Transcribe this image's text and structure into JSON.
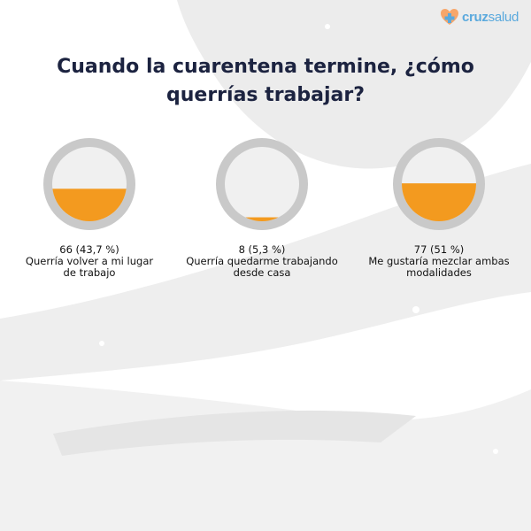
{
  "brand": {
    "name_bold": "cruz",
    "name_regular": "salud"
  },
  "title": "Cuando la cuarentena termine, ¿cómo querrías trabajar?",
  "colors": {
    "fill": "#f39a1f",
    "ring": "#c9c9c9",
    "empty": "#f0f0f0",
    "title": "#1c2340"
  },
  "chart_data": {
    "type": "gauge",
    "title": "Cuando la cuarentena termine, ¿cómo querrías trabajar?",
    "categories": [
      "Querría volver a mi lugar de trabajo",
      "Querría quedarme trabajando desde casa",
      "Me gustaría mezclar ambas modalidades"
    ],
    "counts": [
      66,
      8,
      77
    ],
    "percent": [
      43.7,
      5.3,
      51
    ],
    "value_labels": [
      "66 (43,7 %)",
      "8 (5,3 %)",
      "77 (51 %)"
    ],
    "label_lines": [
      [
        "Querría volver a mi lugar",
        "de trabajo"
      ],
      [
        "Querría quedarme trabajando",
        "desde casa"
      ],
      [
        "Me gustaría mezclar ambas",
        "modalidades"
      ]
    ]
  }
}
